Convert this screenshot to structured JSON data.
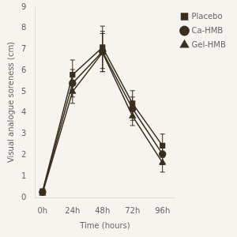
{
  "chart_data": {
    "type": "line",
    "x": [
      0,
      24,
      48,
      72,
      96
    ],
    "xlabel": "Time (hours)",
    "ylabel": "Visual analogue soreness (cm)",
    "xlim": [
      -6,
      106
    ],
    "xticks": [
      {
        "value": 0,
        "label": "0h"
      },
      {
        "value": 24,
        "label": "24h"
      },
      {
        "value": 48,
        "label": "48h"
      },
      {
        "value": 72,
        "label": "72h"
      },
      {
        "value": 96,
        "label": "96h"
      }
    ],
    "ylim": [
      0,
      9
    ],
    "yticks": [
      0,
      1,
      2,
      3,
      4,
      5,
      6,
      7,
      8,
      9
    ],
    "grid": false,
    "legend": "right",
    "series": [
      {
        "name": "Placebo",
        "color": "#3a2e20",
        "marker": "square",
        "values": [
          0.3,
          5.8,
          7.1,
          4.45,
          2.45
        ],
        "errors": [
          0.08,
          0.7,
          1.0,
          0.6,
          0.55
        ]
      },
      {
        "name": "Ca-HMB",
        "color": "#3a2e20",
        "marker": "circle",
        "values": [
          0.25,
          5.4,
          6.9,
          4.2,
          2.05
        ],
        "errors": [
          0.08,
          0.65,
          0.95,
          0.55,
          0.5
        ]
      },
      {
        "name": "Gel-HMB",
        "color": "#3a2e20",
        "marker": "triangle",
        "values": [
          0.2,
          5.0,
          6.85,
          3.85,
          1.65
        ],
        "errors": [
          0.08,
          0.55,
          0.9,
          0.45,
          0.45
        ]
      }
    ]
  }
}
